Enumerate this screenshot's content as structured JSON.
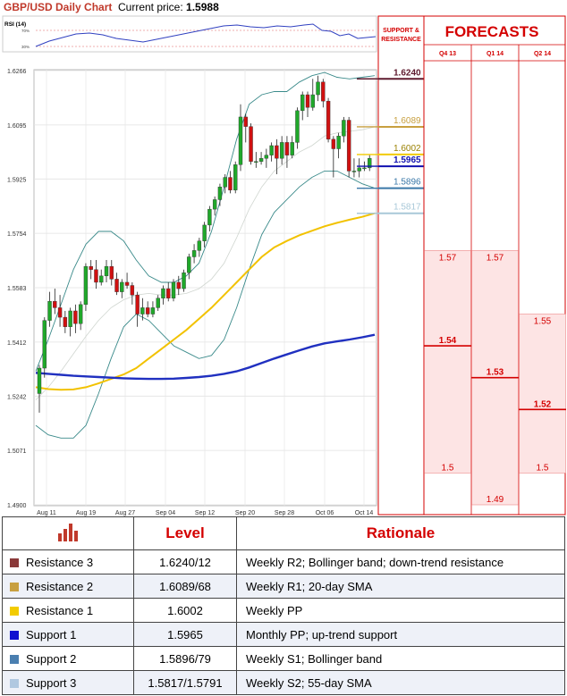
{
  "header": {
    "title": "GBP/USD Daily Chart",
    "price_label": "Current price:",
    "price_value": "1.5988"
  },
  "rsi": {
    "label": "RSI (14)",
    "upper_tick": "70%",
    "lower_tick": "30%"
  },
  "chart_data": {
    "type": "candlestick",
    "x_ticks": [
      "Aug 11",
      "Aug 19",
      "Aug 27",
      "Sep 04",
      "Sep 12",
      "Sep 20",
      "Sep 28",
      "Oct 06",
      "Oct 14"
    ],
    "y_ticks": [
      "1.6266",
      "1.6095",
      "1.5925",
      "1.5754",
      "1.5583",
      "1.5412",
      "1.5242",
      "1.5071",
      "1.4900"
    ],
    "ylim": [
      1.49,
      1.6266
    ],
    "candles": [
      [
        1.525,
        1.533,
        1.519,
        1.534
      ],
      [
        1.533,
        1.548,
        1.53,
        1.549
      ],
      [
        1.548,
        1.554,
        1.546,
        1.557
      ],
      [
        1.554,
        1.552,
        1.55,
        1.558
      ],
      [
        1.552,
        1.549,
        1.546,
        1.556
      ],
      [
        1.549,
        1.546,
        1.544,
        1.551
      ],
      [
        1.546,
        1.551,
        1.543,
        1.552
      ],
      [
        1.551,
        1.547,
        1.544,
        1.553
      ],
      [
        1.547,
        1.553,
        1.545,
        1.554
      ],
      [
        1.553,
        1.565,
        1.551,
        1.566
      ],
      [
        1.565,
        1.564,
        1.561,
        1.567
      ],
      [
        1.564,
        1.56,
        1.558,
        1.567
      ],
      [
        1.56,
        1.562,
        1.559,
        1.564
      ],
      [
        1.562,
        1.565,
        1.56,
        1.567
      ],
      [
        1.565,
        1.561,
        1.559,
        1.567
      ],
      [
        1.561,
        1.557,
        1.556,
        1.563
      ],
      [
        1.557,
        1.56,
        1.555,
        1.561
      ],
      [
        1.56,
        1.559,
        1.558,
        1.563
      ],
      [
        1.559,
        1.556,
        1.553,
        1.56
      ],
      [
        1.556,
        1.55,
        1.546,
        1.557
      ],
      [
        1.55,
        1.552,
        1.548,
        1.555
      ],
      [
        1.552,
        1.55,
        1.549,
        1.554
      ],
      [
        1.55,
        1.552,
        1.549,
        1.554
      ],
      [
        1.552,
        1.555,
        1.551,
        1.556
      ],
      [
        1.555,
        1.558,
        1.553,
        1.559
      ],
      [
        1.558,
        1.555,
        1.554,
        1.56
      ],
      [
        1.555,
        1.56,
        1.554,
        1.561
      ],
      [
        1.56,
        1.558,
        1.556,
        1.562
      ],
      [
        1.558,
        1.563,
        1.557,
        1.564
      ],
      [
        1.563,
        1.568,
        1.561,
        1.569
      ],
      [
        1.568,
        1.57,
        1.566,
        1.572
      ],
      [
        1.57,
        1.573,
        1.568,
        1.574
      ],
      [
        1.573,
        1.578,
        1.571,
        1.579
      ],
      [
        1.578,
        1.583,
        1.576,
        1.584
      ],
      [
        1.583,
        1.586,
        1.581,
        1.587
      ],
      [
        1.586,
        1.59,
        1.584,
        1.591
      ],
      [
        1.59,
        1.593,
        1.588,
        1.594
      ],
      [
        1.593,
        1.589,
        1.588,
        1.595
      ],
      [
        1.589,
        1.597,
        1.588,
        1.598
      ],
      [
        1.597,
        1.612,
        1.595,
        1.616
      ],
      [
        1.612,
        1.609,
        1.604,
        1.613
      ],
      [
        1.609,
        1.598,
        1.597,
        1.61
      ],
      [
        1.598,
        1.598,
        1.596,
        1.601
      ],
      [
        1.598,
        1.599,
        1.597,
        1.601
      ],
      [
        1.599,
        1.6,
        1.596,
        1.602
      ],
      [
        1.6,
        1.603,
        1.598,
        1.604
      ],
      [
        1.603,
        1.599,
        1.594,
        1.605
      ],
      [
        1.599,
        1.604,
        1.597,
        1.606
      ],
      [
        1.604,
        1.6,
        1.596,
        1.606
      ],
      [
        1.6,
        1.604,
        1.599,
        1.606
      ],
      [
        1.604,
        1.614,
        1.602,
        1.615
      ],
      [
        1.614,
        1.619,
        1.611,
        1.62
      ],
      [
        1.619,
        1.615,
        1.612,
        1.62
      ],
      [
        1.615,
        1.619,
        1.614,
        1.624
      ],
      [
        1.619,
        1.623,
        1.617,
        1.625
      ],
      [
        1.623,
        1.617,
        1.615,
        1.624
      ],
      [
        1.617,
        1.605,
        1.604,
        1.618
      ],
      [
        1.605,
        1.602,
        1.593,
        1.606
      ],
      [
        1.602,
        1.606,
        1.599,
        1.607
      ],
      [
        1.606,
        1.611,
        1.604,
        1.612
      ],
      [
        1.611,
        1.595,
        1.593,
        1.612
      ],
      [
        1.595,
        1.595,
        1.593,
        1.599
      ],
      [
        1.595,
        1.596,
        1.593,
        1.599
      ],
      [
        1.596,
        1.596,
        1.595,
        1.598
      ],
      [
        1.596,
        1.599,
        1.595,
        1.6
      ]
    ],
    "sma_slow": [
      1.5315,
      1.5312,
      1.5309,
      1.5306,
      1.5304,
      1.5302,
      1.53,
      1.5298,
      1.5297,
      1.5296,
      1.5296,
      1.5297,
      1.5299,
      1.5302,
      1.5306,
      1.5312,
      1.532,
      1.5332,
      1.5346,
      1.536,
      1.5373,
      1.5386,
      1.5398,
      1.5408,
      1.5414,
      1.542,
      1.5427,
      1.5435
    ],
    "sma_mid": [
      1.527,
      1.5264,
      1.5262,
      1.5263,
      1.527,
      1.5282,
      1.5296,
      1.531,
      1.533,
      1.536,
      1.539,
      1.542,
      1.545,
      1.5485,
      1.552,
      1.556,
      1.56,
      1.564,
      1.568,
      1.571,
      1.573,
      1.5748,
      1.5762,
      1.5776,
      1.5787,
      1.5797,
      1.5806,
      1.5817
    ],
    "boll_upper": [
      1.532,
      1.542,
      1.553,
      1.564,
      1.572,
      1.576,
      1.576,
      1.573,
      1.567,
      1.562,
      1.56,
      1.56,
      1.562,
      1.566,
      1.576,
      1.59,
      1.605,
      1.616,
      1.619,
      1.62,
      1.62,
      1.623,
      1.625,
      1.626,
      1.6245,
      1.624,
      1.6245,
      1.625
    ],
    "boll_lower": [
      1.515,
      1.512,
      1.511,
      1.511,
      1.515,
      1.525,
      1.536,
      1.546,
      1.55,
      1.548,
      1.544,
      1.54,
      1.538,
      1.536,
      1.537,
      1.542,
      1.552,
      1.564,
      1.575,
      1.582,
      1.586,
      1.59,
      1.593,
      1.595,
      1.595,
      1.593,
      1.591,
      1.5896
    ],
    "boll_mid": [
      1.523,
      1.527,
      1.532,
      1.5375,
      1.543,
      1.548,
      1.552,
      1.5545,
      1.556,
      1.5565,
      1.556,
      1.556,
      1.5565,
      1.558,
      1.561,
      1.566,
      1.574,
      1.583,
      1.59,
      1.595,
      1.598,
      1.601,
      1.603,
      1.606,
      1.607,
      1.6075,
      1.608,
      1.6089
    ]
  },
  "levels_panel": {
    "header": "SUPPORT & RESISTANCE",
    "items": [
      {
        "value": 1.624,
        "label": "1.6240",
        "color": "#5e1a2e",
        "text_color": "#5e1a2e",
        "bold": true
      },
      {
        "value": 1.6089,
        "label": "1.6089",
        "color": "#c8a040",
        "text_color": "#c8a040",
        "bold": false
      },
      {
        "value": 1.6002,
        "label": "1.6002",
        "color": "#f2cb00",
        "text_color": "#9a8000",
        "bold": false
      },
      {
        "value": 1.5965,
        "label": "1.5965",
        "color": "#1010b0",
        "text_color": "#1010b0",
        "bold": true
      },
      {
        "value": 1.5896,
        "label": "1.5896",
        "color": "#3a78a8",
        "text_color": "#3a78a8",
        "bold": false
      },
      {
        "value": 1.5817,
        "label": "1.5817",
        "color": "#a8c8d8",
        "text_color": "#a8c8d8",
        "bold": false
      }
    ]
  },
  "forecasts": {
    "title": "FORECASTS",
    "columns": [
      {
        "label": "Q4 13",
        "high": "1.57",
        "avg": "1.54",
        "low": "1.5"
      },
      {
        "label": "Q1 14",
        "high": "1.57",
        "avg": "1.53",
        "low": "1.49"
      },
      {
        "label": "Q2 14",
        "high": "1.55",
        "avg": "1.52",
        "low": "1.5"
      }
    ]
  },
  "levels_table": {
    "header_level": "Level",
    "header_rationale": "Rationale",
    "rows": [
      {
        "name": "Resistance 3",
        "color": "#8b3a3a",
        "level": "1.6240/12",
        "rationale": "Weekly R2; Bollinger band; down-trend resistance"
      },
      {
        "name": "Resistance 2",
        "color": "#c8a040",
        "level": "1.6089/68",
        "rationale": "Weekly R1; 20-day SMA"
      },
      {
        "name": "Resistance 1",
        "color": "#f2cb00",
        "level": "1.6002",
        "rationale": "Weekly PP"
      },
      {
        "name": "Support 1",
        "color": "#1010d0",
        "level": "1.5965",
        "rationale": "Monthly PP; up-trend support"
      },
      {
        "name": "Support 2",
        "color": "#4a7fb0",
        "level": "1.5896/79",
        "rationale": "Weekly S1; Bollinger band"
      },
      {
        "name": "Support 3",
        "color": "#b0c8e0",
        "level": "1.5817/1.5791",
        "rationale": "Weekly S2; 55-day SMA"
      }
    ]
  }
}
